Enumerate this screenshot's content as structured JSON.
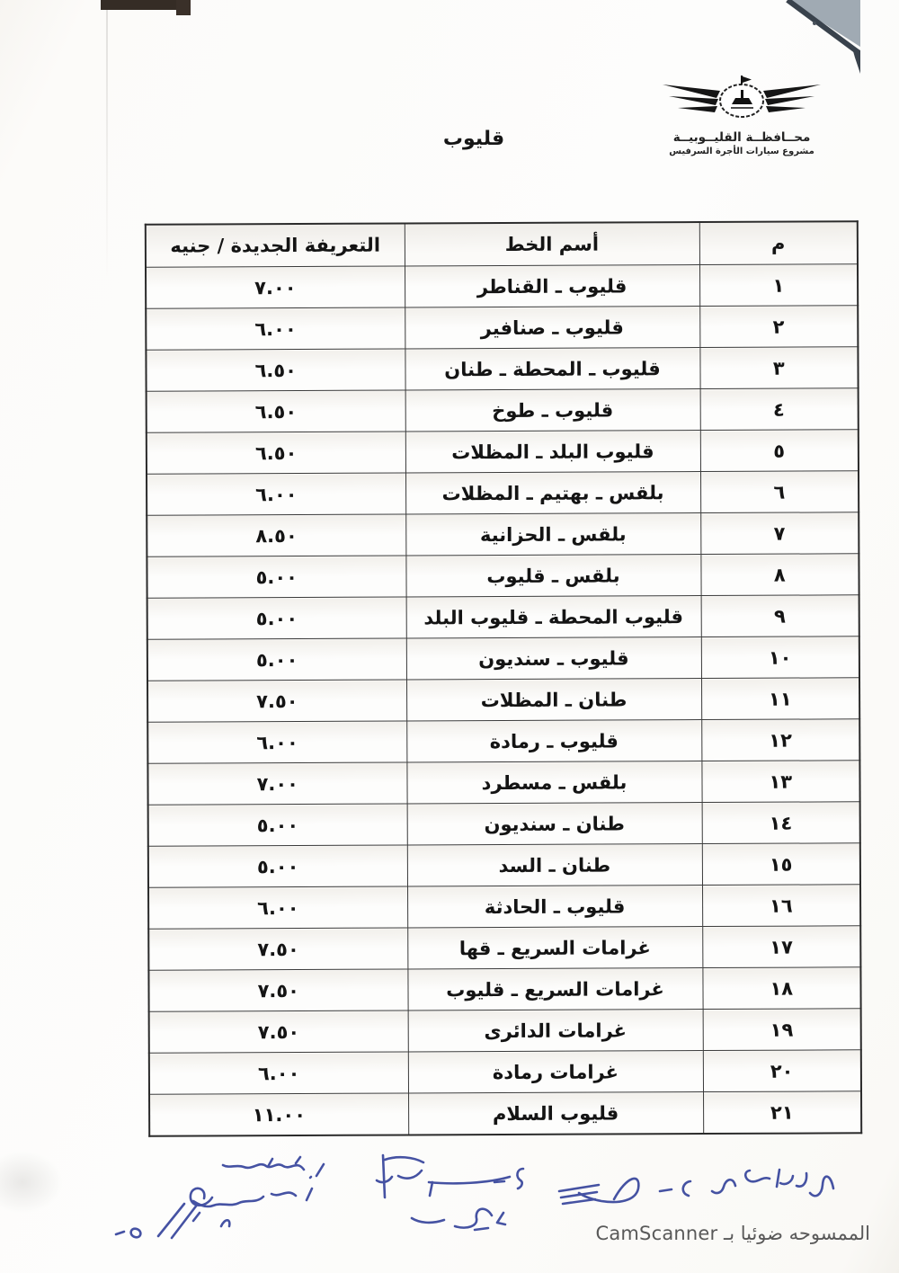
{
  "page": {
    "title": "قليوب",
    "scanner_note": "الممسوحه ضوئيا بـ CamScanner"
  },
  "logo": {
    "org_line1": "محــافظــة القليــوبيــة",
    "org_line2": "مشروع سيارات الأجرة السرفيس"
  },
  "table": {
    "headers": {
      "index": "م",
      "line_name": "أسم الخط",
      "tariff": "التعريفة الجديدة / جنيه"
    },
    "rows": [
      {
        "index": "١",
        "line_name": "قليوب ـ القناطر",
        "tariff": "٧.٠٠"
      },
      {
        "index": "٢",
        "line_name": "قليوب ـ صنافير",
        "tariff": "٦.٠٠"
      },
      {
        "index": "٣",
        "line_name": "قليوب ـ المحطة ـ طنان",
        "tariff": "٦.٥٠"
      },
      {
        "index": "٤",
        "line_name": "قليوب ـ طوخ",
        "tariff": "٦.٥٠"
      },
      {
        "index": "٥",
        "line_name": "قليوب البلد ـ المظلات",
        "tariff": "٦.٥٠"
      },
      {
        "index": "٦",
        "line_name": "بلقس ـ بهتيم ـ المظلات",
        "tariff": "٦.٠٠"
      },
      {
        "index": "٧",
        "line_name": "بلقس ـ الحزانية",
        "tariff": "٨.٥٠"
      },
      {
        "index": "٨",
        "line_name": "بلقس ـ قليوب",
        "tariff": "٥.٠٠"
      },
      {
        "index": "٩",
        "line_name": "قليوب المحطة ـ قليوب البلد",
        "tariff": "٥.٠٠"
      },
      {
        "index": "١٠",
        "line_name": "قليوب ـ سنديون",
        "tariff": "٥.٠٠"
      },
      {
        "index": "١١",
        "line_name": "طنان ـ المظلات",
        "tariff": "٧.٥٠"
      },
      {
        "index": "١٢",
        "line_name": "قليوب ـ رمادة",
        "tariff": "٦.٠٠"
      },
      {
        "index": "١٣",
        "line_name": "بلقس ـ مسطرد",
        "tariff": "٧.٠٠"
      },
      {
        "index": "١٤",
        "line_name": "طنان ـ سنديون",
        "tariff": "٥.٠٠"
      },
      {
        "index": "١٥",
        "line_name": "طنان ـ السد",
        "tariff": "٥.٠٠"
      },
      {
        "index": "١٦",
        "line_name": "قليوب ـ الحادثة",
        "tariff": "٦.٠٠"
      },
      {
        "index": "١٧",
        "line_name": "غرامات السريع ـ قها",
        "tariff": "٧.٥٠"
      },
      {
        "index": "١٨",
        "line_name": "غرامات السريع ـ قليوب",
        "tariff": "٧.٥٠"
      },
      {
        "index": "١٩",
        "line_name": "غرامات الدائرى",
        "tariff": "٧.٥٠"
      },
      {
        "index": "٢٠",
        "line_name": "غرامات رمادة",
        "tariff": "٦.٠٠"
      },
      {
        "index": "٢١",
        "line_name": "قليوب السلام",
        "tariff": "١١.٠٠"
      }
    ]
  },
  "colors": {
    "ink_blue": "#2c3b97",
    "paper": "#fbfaf7",
    "table_border": "#2f2f2f",
    "fold_gray": "#97a1ab"
  }
}
